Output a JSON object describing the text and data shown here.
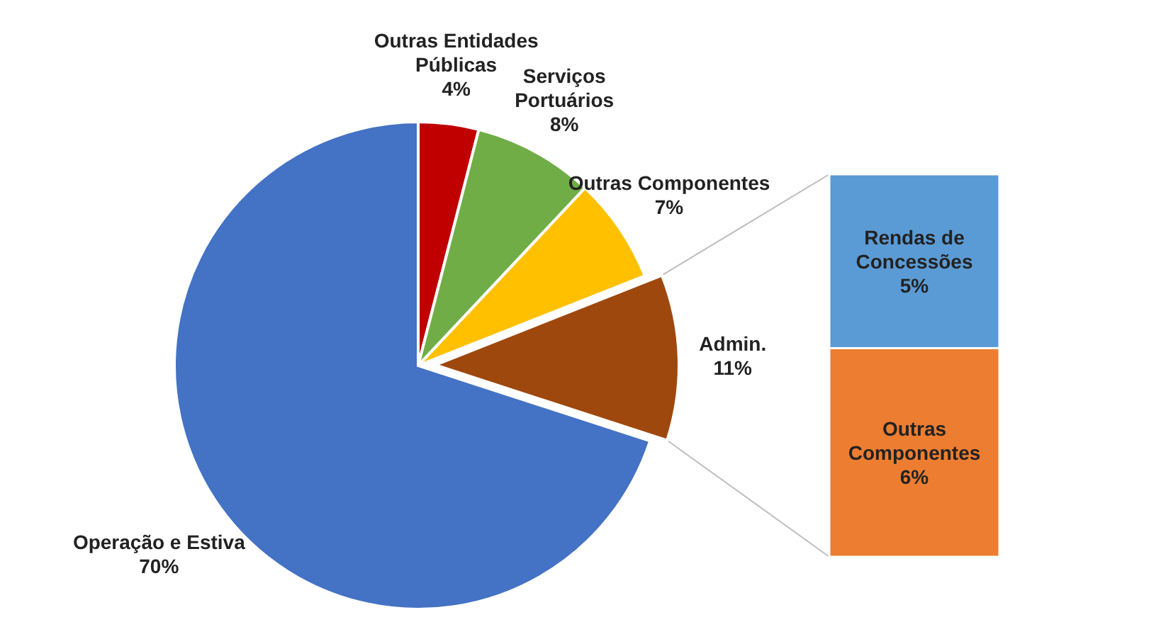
{
  "chart_data": [
    {
      "type": "pie",
      "categories": [
        "Outras Entidades Públicas",
        "Serviços Portuários",
        "Outras Componentes",
        "Admin.",
        "Operação e Estiva"
      ],
      "values": [
        4,
        8,
        7,
        11,
        70
      ],
      "colors": [
        "#c00000",
        "#70ad47",
        "#ffc000",
        "#9e480e",
        "#4472c4"
      ],
      "value_labels": [
        "4%",
        "8%",
        "7%",
        "11%",
        "70%"
      ]
    },
    {
      "type": "bar",
      "stacked": true,
      "categories": [
        null
      ],
      "tick_labels": false,
      "series": [
        {
          "name": "Outras Componentes",
          "color": "#ed7d31",
          "values": [
            6
          ],
          "value_labels": [
            "6%"
          ]
        },
        {
          "name": "Rendas de Concessões",
          "color": "#5b9bd5",
          "values": [
            5
          ],
          "value_labels": [
            "5%"
          ]
        }
      ]
    }
  ]
}
